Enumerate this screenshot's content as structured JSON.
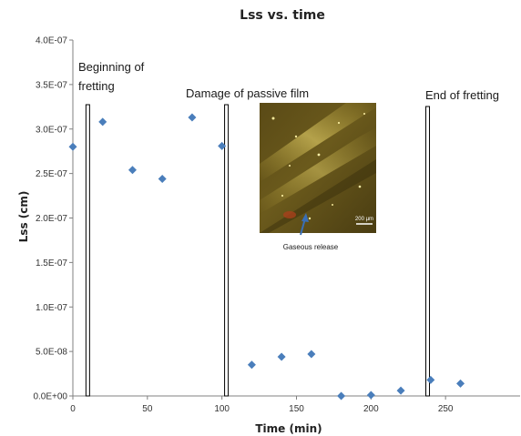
{
  "chart_data": {
    "type": "scatter",
    "title": "Lss vs. time",
    "xlabel": "Time (min)",
    "ylabel": "Lss (cm)",
    "xlim": [
      0,
      300
    ],
    "ylim": [
      0,
      4e-07
    ],
    "x_ticks": [
      0,
      50,
      100,
      150,
      200,
      250
    ],
    "y_ticks": [
      0,
      5e-08,
      1e-07,
      1.5e-07,
      2e-07,
      2.5e-07,
      3e-07,
      3.5e-07,
      4e-07
    ],
    "y_tick_labels": [
      "0.0E+00",
      "5.0E-08",
      "1.0E-07",
      "1.5E-07",
      "2.0E-07",
      "2.5E-07",
      "3.0E-07",
      "3.5E-07",
      "4.0E-07"
    ],
    "grid": false,
    "marker": "diamond",
    "marker_color": "#4a7ebb",
    "series": [
      {
        "x": [
          0,
          20,
          40,
          60,
          80,
          100,
          120,
          140,
          160,
          180,
          200,
          220,
          240,
          260
        ],
        "y": [
          2.8e-07,
          3.08e-07,
          2.54e-07,
          2.44e-07,
          3.13e-07,
          2.81e-07,
          3.5e-08,
          4.4e-08,
          4.7e-08,
          0.0,
          1e-09,
          6e-09,
          1.8e-08,
          1.4e-08
        ]
      }
    ],
    "vertical_lines": [
      {
        "x": 10,
        "label_line1": "Beginning of",
        "label_line2": "fretting"
      },
      {
        "x": 103,
        "label_line1": "Damage of passive film",
        "label_line2": ""
      },
      {
        "x": 238,
        "label_line1": "End of fretting",
        "label_line2": ""
      }
    ],
    "inset": {
      "caption": "Gaseous release",
      "scale_bar": "200 µm"
    }
  }
}
